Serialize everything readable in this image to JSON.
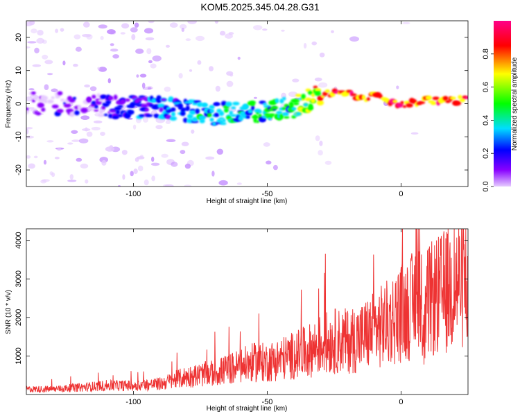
{
  "title": "KOM5.2025.345.04.28.G31",
  "chart_data": [
    {
      "type": "heatmap",
      "xlabel": "Height of straight line (km)",
      "ylabel": "Frequency (Hz)",
      "xlim": [
        -140,
        25
      ],
      "ylim": [
        -25,
        25
      ],
      "x_ticks": [
        -100,
        -50,
        0
      ],
      "y_ticks": [
        -20,
        -10,
        0,
        10,
        20
      ],
      "colorbar": {
        "label": "Normalized spectral amplitude",
        "range": [
          0,
          1
        ],
        "ticks": [
          "0.0",
          "0.2",
          "0.4",
          "0.6",
          "0.8"
        ],
        "tick_values": [
          0.0,
          0.2,
          0.4,
          0.6,
          0.8
        ],
        "colors": [
          "#e6ccff",
          "#8800ff",
          "#0000ff",
          "#00ddff",
          "#00ff00",
          "#ffff00",
          "#ff0000",
          "#ff0088"
        ]
      },
      "ridge": {
        "x": [
          -140,
          -120,
          -110,
          -100,
          -90,
          -80,
          -70,
          -60,
          -50,
          -40,
          -35,
          -30,
          -25,
          -20,
          -15,
          -10,
          -5,
          0,
          5,
          10,
          15,
          20,
          25
        ],
        "freq": [
          0,
          0,
          -1,
          -1,
          -1,
          -2,
          -3,
          -3,
          -2,
          -1,
          1,
          3,
          3,
          3,
          2,
          2,
          1,
          0,
          0,
          1,
          1,
          1,
          1
        ],
        "amplitude": [
          0.05,
          0.1,
          0.15,
          0.25,
          0.3,
          0.35,
          0.4,
          0.4,
          0.45,
          0.5,
          0.6,
          0.75,
          0.85,
          0.85,
          0.85,
          0.8,
          0.8,
          0.85,
          0.85,
          0.8,
          0.85,
          0.85,
          0.85
        ]
      }
    },
    {
      "type": "line",
      "xlabel": "Height of straight line (km)",
      "ylabel": "SNR (10 * v/v)",
      "xlim": [
        -140,
        25
      ],
      "ylim": [
        0,
        4300
      ],
      "x_ticks": [
        -100,
        -50,
        0
      ],
      "y_ticks": [
        1000,
        2000,
        3000,
        4000
      ],
      "color": "#ee3333",
      "series": [
        {
          "name": "SNR",
          "x": [
            -140,
            -130,
            -120,
            -110,
            -100,
            -90,
            -85,
            -80,
            -75,
            -70,
            -65,
            -60,
            -55,
            -50,
            -45,
            -40,
            -35,
            -30,
            -25,
            -20,
            -15,
            -10,
            -5,
            0,
            5,
            6,
            8,
            10,
            15,
            20,
            25
          ],
          "y": [
            150,
            150,
            200,
            250,
            250,
            300,
            400,
            500,
            550,
            600,
            700,
            800,
            900,
            900,
            1000,
            1100,
            1200,
            1400,
            1500,
            1500,
            1600,
            1800,
            2000,
            2300,
            2500,
            4200,
            1200,
            2600,
            2800,
            3100,
            3300
          ]
        }
      ]
    }
  ]
}
